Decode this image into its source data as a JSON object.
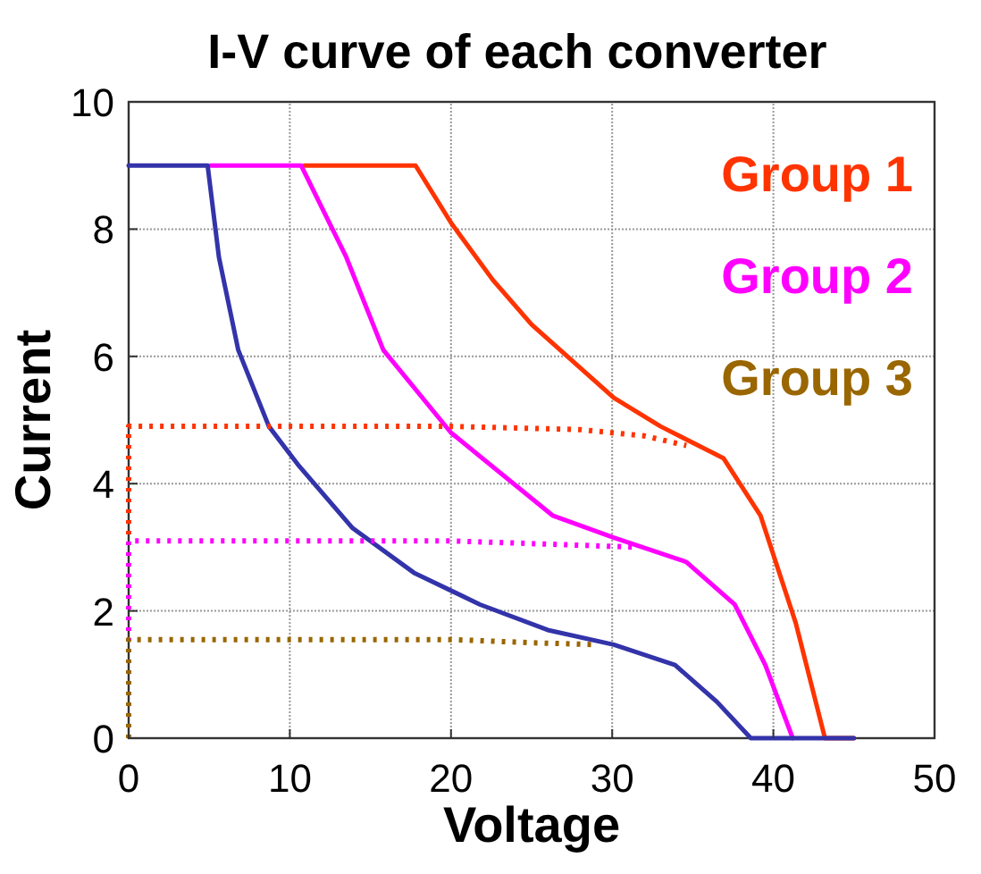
{
  "chart_data": {
    "type": "line",
    "title": "I-V curve of each converter",
    "xlabel": "Voltage",
    "ylabel": "Current",
    "xlim": [
      0,
      50
    ],
    "ylim": [
      0,
      10
    ],
    "xticks": [
      0,
      10,
      20,
      30,
      40,
      50
    ],
    "yticks": [
      0,
      2,
      4,
      6,
      8,
      10
    ],
    "grid": true,
    "legend": "top right",
    "line_style": "solid",
    "marker": "none",
    "series": [
      {
        "name": "Group 1",
        "color": "#ff3300",
        "x": [
          10.9,
          17.8,
          20,
          22.6,
          25,
          30.1,
          33,
          36.9,
          39.2,
          41.4,
          43.2,
          45
        ],
        "values": [
          9,
          9,
          8.1,
          7.2,
          6.5,
          5.35,
          4.9,
          4.4,
          3.5,
          1.8,
          0,
          0
        ]
      },
      {
        "name": "Group 2",
        "color": "#ff00ff",
        "x": [
          5.1,
          10.7,
          13.5,
          15.8,
          20,
          26.3,
          30.1,
          34.6,
          37.6,
          39.5,
          41.2
        ],
        "values": [
          9,
          9,
          7.56,
          6.1,
          4.8,
          3.5,
          3.15,
          2.77,
          2.1,
          1.15,
          0
        ]
      },
      {
        "color": "#3333aa",
        "x": [
          0,
          4.9,
          5.6,
          6.8,
          8.7,
          10.5,
          13.9,
          17.7,
          21.8,
          26,
          30.1,
          33.9,
          36.5,
          38.6,
          45
        ],
        "values": [
          9,
          9,
          7.56,
          6.1,
          4.9,
          4.3,
          3.3,
          2.6,
          2.1,
          1.7,
          1.47,
          1.15,
          0.57,
          0,
          0
        ]
      },
      {
        "color": "#ff3300",
        "line_style": "dotted",
        "x": [
          0,
          0,
          20,
          28,
          32,
          34.6
        ],
        "values": [
          0,
          4.9,
          4.9,
          4.85,
          4.75,
          4.6
        ]
      },
      {
        "color": "#ff00ff",
        "line_style": "dotted",
        "x": [
          0,
          0,
          20,
          26,
          31.6
        ],
        "values": [
          0,
          3.1,
          3.1,
          3.05,
          3.0
        ]
      },
      {
        "name": "Group 3",
        "color": "#996600",
        "line_style": "dotted",
        "x": [
          0,
          0,
          20,
          25,
          29
        ],
        "values": [
          0,
          1.55,
          1.55,
          1.5,
          1.47
        ]
      }
    ]
  }
}
